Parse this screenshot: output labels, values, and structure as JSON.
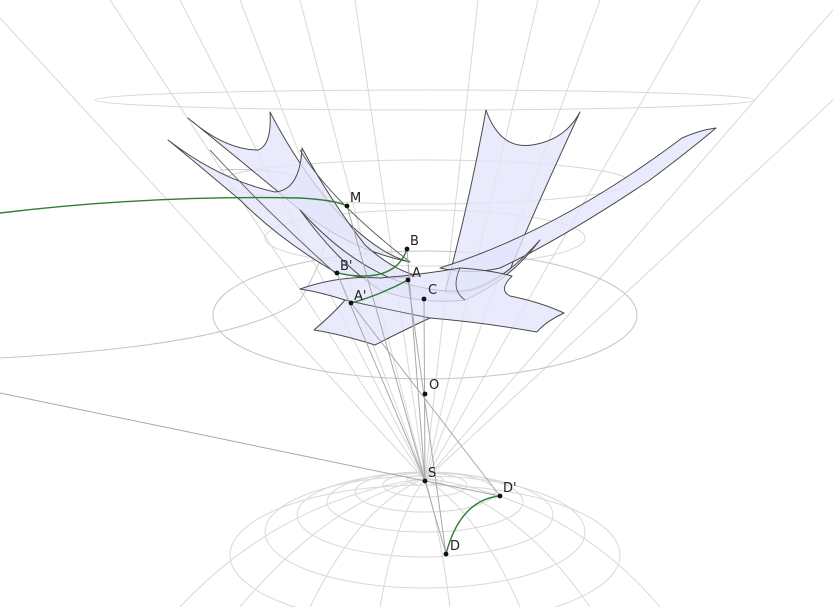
{
  "points": [
    {
      "id": "M",
      "label": "M"
    },
    {
      "id": "B",
      "label": "B"
    },
    {
      "id": "B_prime",
      "label": "B'"
    },
    {
      "id": "A",
      "label": "A"
    },
    {
      "id": "A_prime",
      "label": "A'"
    },
    {
      "id": "C",
      "label": "C"
    },
    {
      "id": "O",
      "label": "O"
    },
    {
      "id": "S",
      "label": "S"
    },
    {
      "id": "D_prime",
      "label": "D'"
    },
    {
      "id": "D",
      "label": "D"
    }
  ],
  "colors": {
    "surface_fill": "#e3e5fb",
    "surface_edge": "#4a4a4a",
    "curve": "#2f7d32",
    "guide": "#d8d8d8",
    "construction": "#a8a8a8",
    "point": "#111111"
  }
}
